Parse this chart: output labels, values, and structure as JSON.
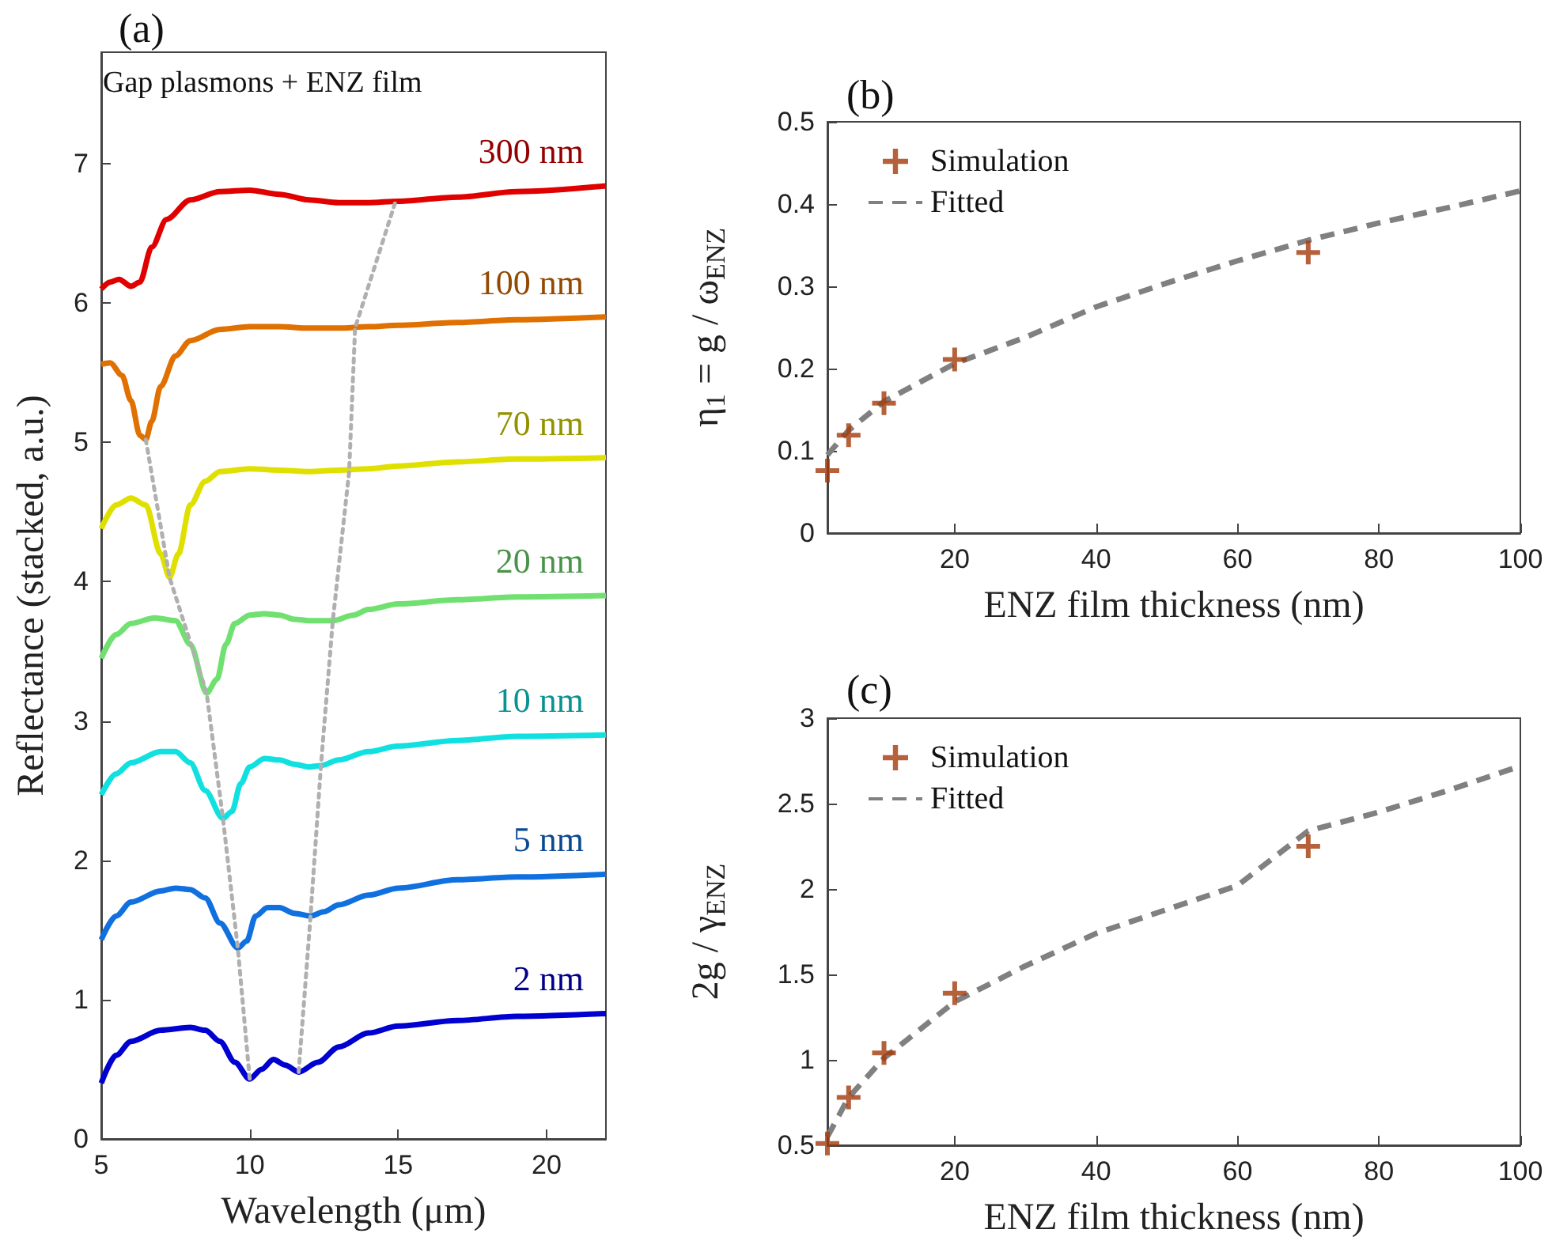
{
  "chart_data": [
    {
      "type": "line",
      "title": "(a)",
      "xlabel": "Wavelength (μm)",
      "ylabel": "Reflectance (stacked, a.u.)",
      "annotations": [
        "Gap plasmons + ENZ film"
      ],
      "xlim": [
        5,
        22
      ],
      "xticks": [
        5,
        10,
        15,
        20
      ],
      "ylim": [
        0,
        7.8
      ],
      "yticks": [
        0,
        1,
        2,
        3,
        4,
        5,
        6,
        7
      ],
      "marker": "none",
      "line_style": "solid",
      "legend": false,
      "series": [
        {
          "name": "300 nm",
          "color": "#e00000",
          "x": [
            5,
            5.3,
            5.6,
            6,
            6.3,
            6.7,
            7.2,
            8,
            9,
            10,
            11,
            12,
            13,
            14,
            15,
            17,
            19,
            22
          ],
          "values": [
            6.1,
            6.15,
            6.17,
            6.12,
            6.15,
            6.4,
            6.6,
            6.74,
            6.8,
            6.81,
            6.78,
            6.74,
            6.72,
            6.72,
            6.73,
            6.76,
            6.8,
            6.84
          ]
        },
        {
          "name": "100 nm",
          "color": "#e07000",
          "x": [
            5,
            5.3,
            5.7,
            6,
            6.3,
            6.5,
            6.7,
            7,
            7.5,
            8,
            9,
            10,
            11,
            12,
            13,
            14,
            15,
            17,
            19,
            22
          ],
          "values": [
            5.56,
            5.57,
            5.48,
            5.3,
            5.05,
            5.02,
            5.15,
            5.4,
            5.62,
            5.73,
            5.81,
            5.83,
            5.83,
            5.82,
            5.82,
            5.83,
            5.84,
            5.86,
            5.88,
            5.9
          ]
        },
        {
          "name": "70 nm",
          "color": "#e0e000",
          "x": [
            5,
            5.5,
            6,
            6.5,
            7,
            7.3,
            7.6,
            8,
            8.5,
            9,
            10,
            11,
            12,
            13,
            14,
            15,
            17,
            19,
            22
          ],
          "values": [
            4.38,
            4.55,
            4.6,
            4.55,
            4.2,
            4.03,
            4.2,
            4.55,
            4.72,
            4.79,
            4.81,
            4.8,
            4.79,
            4.8,
            4.81,
            4.83,
            4.86,
            4.88,
            4.89
          ]
        },
        {
          "name": "20 nm",
          "color": "#70e070",
          "x": [
            5,
            5.5,
            6,
            6.8,
            7.5,
            8,
            8.55,
            8.9,
            9.2,
            9.5,
            10,
            10.5,
            11,
            11.5,
            12,
            12.8,
            13.5,
            14,
            15,
            17,
            19,
            22
          ],
          "values": [
            3.45,
            3.62,
            3.7,
            3.74,
            3.72,
            3.55,
            3.2,
            3.3,
            3.55,
            3.7,
            3.76,
            3.77,
            3.76,
            3.73,
            3.72,
            3.72,
            3.76,
            3.8,
            3.84,
            3.87,
            3.89,
            3.9
          ]
        },
        {
          "name": "10 nm",
          "color": "#10e0e0",
          "x": [
            5,
            5.5,
            6,
            7,
            7.5,
            8,
            8.5,
            9.1,
            9.4,
            9.7,
            10,
            10.5,
            11,
            11.5,
            12,
            12.4,
            13,
            14,
            15,
            17,
            19,
            22
          ],
          "values": [
            2.47,
            2.62,
            2.7,
            2.78,
            2.78,
            2.7,
            2.5,
            2.3,
            2.35,
            2.55,
            2.67,
            2.73,
            2.72,
            2.69,
            2.67,
            2.68,
            2.72,
            2.78,
            2.82,
            2.86,
            2.89,
            2.9
          ]
        },
        {
          "name": "5 nm",
          "color": "#1070e0",
          "x": [
            5,
            5.5,
            6,
            7,
            7.5,
            8,
            8.5,
            9,
            9.6,
            9.9,
            10.2,
            10.6,
            11,
            11.5,
            12.05,
            12.5,
            13,
            14,
            15,
            17,
            19,
            22
          ],
          "values": [
            1.43,
            1.6,
            1.7,
            1.78,
            1.8,
            1.79,
            1.73,
            1.55,
            1.37,
            1.42,
            1.6,
            1.66,
            1.66,
            1.62,
            1.6,
            1.63,
            1.68,
            1.75,
            1.8,
            1.86,
            1.88,
            1.9
          ]
        },
        {
          "name": "2 nm",
          "color": "#0000d0",
          "x": [
            5,
            5.5,
            6,
            7,
            8,
            8.5,
            9,
            9.5,
            10,
            10.4,
            10.8,
            11.2,
            11.65,
            12.3,
            13,
            14,
            15,
            17,
            19,
            22
          ],
          "values": [
            0.4,
            0.6,
            0.7,
            0.78,
            0.8,
            0.78,
            0.7,
            0.55,
            0.43,
            0.5,
            0.57,
            0.53,
            0.48,
            0.55,
            0.66,
            0.76,
            0.81,
            0.85,
            0.88,
            0.9
          ]
        },
        {
          "color": "#b0b0b0",
          "line_style": "dotted",
          "x": [
            6.5,
            7.3,
            8.55,
            9.1,
            9.6,
            10.0
          ],
          "values": [
            5.02,
            4.03,
            3.2,
            2.3,
            1.37,
            0.43
          ]
        },
        {
          "color": "#b0b0b0",
          "line_style": "dotted",
          "x": [
            11.65,
            12.05,
            12.4,
            12.8,
            13.35,
            13.55,
            14.9
          ],
          "values": [
            0.48,
            1.6,
            2.68,
            3.72,
            4.79,
            5.82,
            6.72
          ]
        }
      ]
    },
    {
      "type": "scatter",
      "title": "(b)",
      "xlabel": "ENZ film thickness (nm)",
      "ylabel": "η$_{1}$ = g / ω$_{ENZ}$",
      "xlim": [
        2,
        100
      ],
      "xticks": [
        20,
        40,
        60,
        80,
        100
      ],
      "ylim": [
        0,
        0.5
      ],
      "yticks": [
        0,
        0.1,
        0.2,
        0.3,
        0.4,
        0.5
      ],
      "legend": "top left",
      "series": [
        {
          "name": "Simulation",
          "color": "#a33a0a",
          "marker": "cross",
          "x": [
            2,
            5,
            10,
            20,
            70
          ],
          "values": [
            0.076,
            0.119,
            0.158,
            0.211,
            0.341
          ]
        },
        {
          "name": "Fitted",
          "type": "line",
          "color": "#808080",
          "marker": "none",
          "line_style": "dashed",
          "x": [
            2,
            5,
            10,
            20,
            30,
            40,
            50,
            60,
            70,
            80,
            90,
            100
          ],
          "values": [
            0.095,
            0.125,
            0.16,
            0.206,
            0.238,
            0.275,
            0.304,
            0.331,
            0.356,
            0.377,
            0.396,
            0.416
          ]
        }
      ]
    },
    {
      "type": "scatter",
      "title": "(c)",
      "xlabel": "ENZ film thickness (nm)",
      "ylabel": "2g / γ$_{ENZ}$",
      "xlim": [
        2,
        100
      ],
      "xticks": [
        20,
        40,
        60,
        80,
        100
      ],
      "ylim": [
        0.5,
        3
      ],
      "yticks": [
        0.5,
        1,
        1.5,
        2,
        2.5,
        3
      ],
      "legend": "top left",
      "series": [
        {
          "name": "Simulation",
          "color": "#a33a0a",
          "marker": "cross",
          "x": [
            2,
            5,
            10,
            20,
            70
          ],
          "values": [
            0.51,
            0.78,
            1.04,
            1.39,
            2.25
          ]
        },
        {
          "name": "Fitted",
          "type": "line",
          "color": "#808080",
          "marker": "none",
          "line_style": "dashed",
          "x": [
            2,
            5,
            10,
            20,
            30,
            40,
            50,
            60,
            70,
            80,
            90,
            100
          ],
          "values": [
            0.55,
            0.78,
            1.01,
            1.34,
            1.55,
            1.74,
            1.88,
            2.02,
            2.34,
            2.45,
            2.58,
            2.72
          ]
        }
      ]
    }
  ]
}
